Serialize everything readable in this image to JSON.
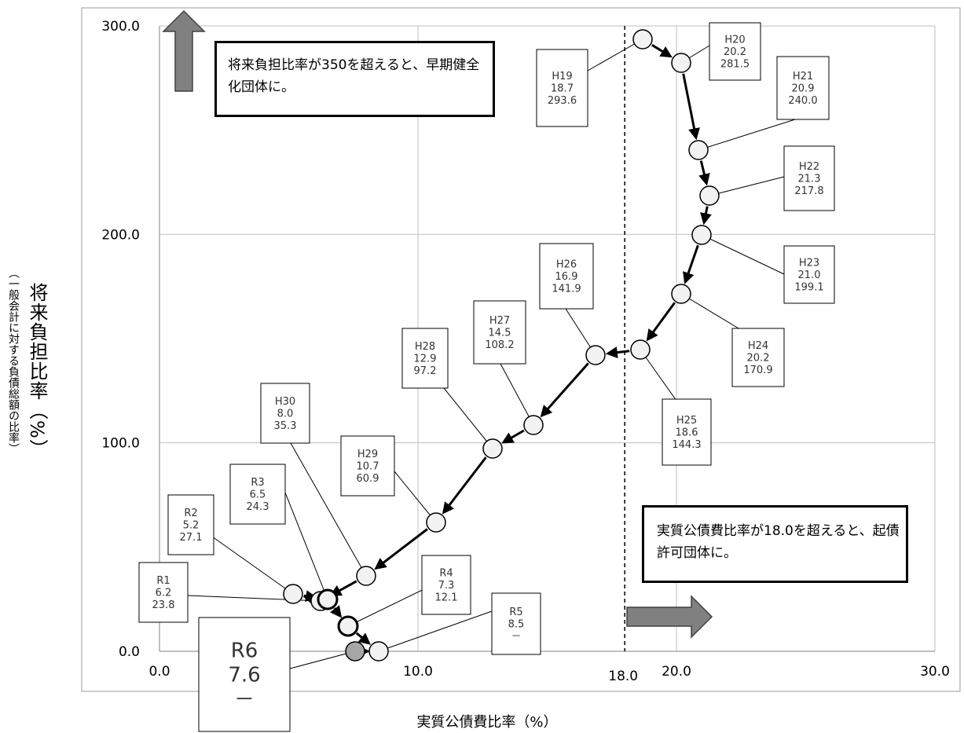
{
  "chart_data": {
    "type": "scatter",
    "xlabel": "実質公債費比率（%）",
    "ylabel": "将来負担比率（%）",
    "ylabel_sub": "（一般会計に対する負債総額の比率）",
    "xlim": [
      0,
      30
    ],
    "ylim": [
      0,
      300
    ],
    "x_ticks": [
      "0.0",
      "10.0",
      "20.0",
      "30.0"
    ],
    "y_ticks": [
      "0.0",
      "100.0",
      "200.0",
      "300.0"
    ],
    "grid": true,
    "threshold": {
      "value": 18.0,
      "label": "18.0"
    },
    "points": [
      {
        "label": "H19",
        "x": 18.7,
        "y": 293.6,
        "x_text": "18.7",
        "y_text": "293.6"
      },
      {
        "label": "H20",
        "x": 20.2,
        "y": 281.5,
        "x_text": "20.2",
        "y_text": "281.5"
      },
      {
        "label": "H21",
        "x": 20.9,
        "y": 240.0,
        "x_text": "20.9",
        "y_text": "240.0"
      },
      {
        "label": "H22",
        "x": 21.3,
        "y": 217.8,
        "x_text": "21.3",
        "y_text": "217.8"
      },
      {
        "label": "H23",
        "x": 21.0,
        "y": 199.1,
        "x_text": "21.0",
        "y_text": "199.1"
      },
      {
        "label": "H24",
        "x": 20.2,
        "y": 170.9,
        "x_text": "20.2",
        "y_text": "170.9"
      },
      {
        "label": "H25",
        "x": 18.6,
        "y": 144.3,
        "x_text": "18.6",
        "y_text": "144.3"
      },
      {
        "label": "H26",
        "x": 16.9,
        "y": 141.9,
        "x_text": "16.9",
        "y_text": "141.9"
      },
      {
        "label": "H27",
        "x": 14.5,
        "y": 108.2,
        "x_text": "14.5",
        "y_text": "108.2"
      },
      {
        "label": "H28",
        "x": 12.9,
        "y": 97.2,
        "x_text": "12.9",
        "y_text": "97.2"
      },
      {
        "label": "H29",
        "x": 10.7,
        "y": 60.9,
        "x_text": "10.7",
        "y_text": "60.9"
      },
      {
        "label": "H30",
        "x": 8.0,
        "y": 35.3,
        "x_text": "8.0",
        "y_text": "35.3"
      },
      {
        "label": "R1",
        "x": 6.2,
        "y": 23.8,
        "x_text": "6.2",
        "y_text": "23.8"
      },
      {
        "label": "R2",
        "x": 5.2,
        "y": 27.1,
        "x_text": "5.2",
        "y_text": "27.1"
      },
      {
        "label": "R3",
        "x": 6.5,
        "y": 24.3,
        "x_text": "6.5",
        "y_text": "24.3"
      },
      {
        "label": "R4",
        "x": 7.3,
        "y": 12.1,
        "x_text": "7.3",
        "y_text": "12.1"
      },
      {
        "label": "R5",
        "x": 8.5,
        "y": 0,
        "x_text": "8.5",
        "y_text": "－"
      },
      {
        "label": "R6",
        "x": 7.6,
        "y": 0,
        "x_text": "7.6",
        "y_text": "－"
      }
    ],
    "notes": {
      "upper": "将来負担比率が350を超えると、早期健全化団体に。",
      "lower": "実質公債費比率が18.0を超えると、起債許可団体に。"
    },
    "colors": {
      "point_fill": "#f2f2f2",
      "current_point_fill": "#a6a6a6",
      "arrow_fill": "#808080",
      "grid": "#bfbfbf",
      "frame": "#999999"
    }
  }
}
